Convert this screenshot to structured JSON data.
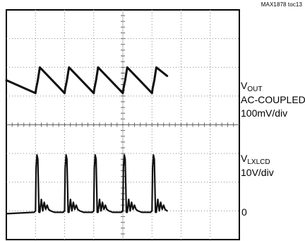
{
  "figure_id": "MAX1878 toc13",
  "channels": [
    {
      "name_main": "V",
      "name_sub": "OUT",
      "lines": [
        "AC-COUPLED",
        "100mV/div"
      ]
    },
    {
      "name_main": "V",
      "name_sub": "LXLCD",
      "lines": [
        "10V/div"
      ]
    }
  ],
  "ground_label": "0",
  "chart_data": {
    "type": "line",
    "title": "",
    "xlabel": "",
    "ylabel": "",
    "grid": true,
    "x_divisions": 8,
    "y_divisions": 8,
    "xlim": [
      0,
      8
    ],
    "ylim": [
      -4,
      4
    ],
    "series": [
      {
        "name": "VOUT",
        "x": [
          0.0,
          1.0,
          1.02,
          1.08,
          1.15,
          2.0,
          2.02,
          2.08,
          2.15,
          3.0,
          3.02,
          3.08,
          3.15,
          4.0,
          4.02,
          4.08,
          4.15,
          5.0,
          5.02,
          5.08,
          5.15,
          5.52
        ],
        "y": [
          1.55,
          1.1,
          1.25,
          1.55,
          2.0,
          1.1,
          1.25,
          1.55,
          2.0,
          1.1,
          1.25,
          1.55,
          2.0,
          1.1,
          1.25,
          1.55,
          2.0,
          1.1,
          1.25,
          1.55,
          2.0,
          1.7
        ]
      },
      {
        "name": "VLXLCD",
        "x": [
          0.0,
          0.95,
          1.0,
          1.02,
          1.05,
          1.08,
          1.12,
          1.15,
          1.2,
          1.25,
          1.3,
          1.35,
          1.4,
          1.45,
          1.52,
          1.65,
          1.95,
          2.0,
          2.02,
          2.05,
          2.08,
          2.12,
          2.15,
          2.2,
          2.25,
          2.3,
          2.35,
          2.4,
          2.45,
          2.52,
          2.65,
          2.95,
          3.0,
          3.02,
          3.05,
          3.08,
          3.12,
          3.15,
          3.2,
          3.25,
          3.3,
          3.35,
          3.4,
          3.45,
          3.52,
          3.65,
          3.95,
          4.0,
          4.02,
          4.05,
          4.08,
          4.12,
          4.15,
          4.2,
          4.25,
          4.3,
          4.35,
          4.4,
          4.45,
          4.52,
          4.65,
          4.95,
          5.0,
          5.02,
          5.05,
          5.08,
          5.12,
          5.15,
          5.2,
          5.25,
          5.3,
          5.35,
          5.4,
          5.45,
          5.52
        ],
        "y": [
          -3.1,
          -3.05,
          -3.0,
          -1.5,
          -1.05,
          -1.2,
          -3.05,
          -3.05,
          -2.6,
          -3.0,
          -2.7,
          -2.95,
          -2.8,
          -2.95,
          -3.0,
          -3.05,
          -3.05,
          -3.0,
          -1.5,
          -1.05,
          -1.2,
          -3.05,
          -3.05,
          -2.6,
          -3.0,
          -2.7,
          -2.95,
          -2.8,
          -2.95,
          -3.0,
          -3.05,
          -3.05,
          -3.0,
          -1.5,
          -1.05,
          -1.2,
          -3.05,
          -3.05,
          -2.6,
          -3.0,
          -2.7,
          -2.95,
          -2.8,
          -2.95,
          -3.0,
          -3.05,
          -3.05,
          -3.0,
          -1.5,
          -1.05,
          -1.2,
          -3.05,
          -3.05,
          -2.6,
          -3.0,
          -2.7,
          -2.95,
          -2.8,
          -2.95,
          -3.0,
          -3.05,
          -3.05,
          -3.0,
          -1.5,
          -1.05,
          -1.2,
          -3.05,
          -3.05,
          -2.6,
          -3.0,
          -2.7,
          -2.95,
          -2.8,
          -2.95,
          -3.0
        ]
      }
    ]
  }
}
